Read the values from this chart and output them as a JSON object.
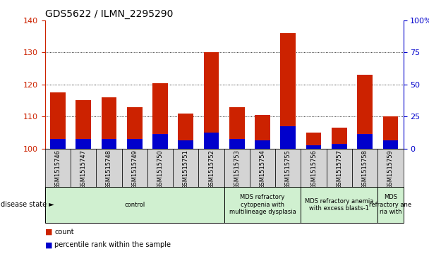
{
  "title": "GDS5622 / ILMN_2295290",
  "samples": [
    "GSM1515746",
    "GSM1515747",
    "GSM1515748",
    "GSM1515749",
    "GSM1515750",
    "GSM1515751",
    "GSM1515752",
    "GSM1515753",
    "GSM1515754",
    "GSM1515755",
    "GSM1515756",
    "GSM1515757",
    "GSM1515758",
    "GSM1515759"
  ],
  "counts": [
    117.5,
    115.0,
    116.0,
    113.0,
    120.5,
    111.0,
    130.0,
    113.0,
    110.5,
    136.0,
    105.0,
    106.5,
    123.0,
    110.0
  ],
  "percentile_heights": [
    3.0,
    3.0,
    3.0,
    3.0,
    4.5,
    2.5,
    5.0,
    3.0,
    2.5,
    7.0,
    1.0,
    1.5,
    4.5,
    2.5
  ],
  "bar_base": 100,
  "ylim_left": [
    100,
    140
  ],
  "ylim_right": [
    0,
    100
  ],
  "yticks_left": [
    100,
    110,
    120,
    130,
    140
  ],
  "yticks_right": [
    0,
    25,
    50,
    75,
    100
  ],
  "ytick_right_labels": [
    "0",
    "25",
    "50",
    "75",
    "100%"
  ],
  "bar_color": "#cc2200",
  "percentile_color": "#0000cc",
  "grid_color": "#000000",
  "bg_color": "#ffffff",
  "disease_groups": [
    {
      "label": "control",
      "start": 0,
      "end": 6,
      "color": "#d0f0d0"
    },
    {
      "label": "MDS refractory\ncytopenia with\nmultilineage dysplasia",
      "start": 7,
      "end": 9,
      "color": "#d0f0d0"
    },
    {
      "label": "MDS refractory anemia\nwith excess blasts-1",
      "start": 10,
      "end": 12,
      "color": "#d0f0d0"
    },
    {
      "label": "MDS\nrefractory ane\nria with",
      "start": 13,
      "end": 13,
      "color": "#d0f0d0"
    }
  ],
  "disease_state_label": "disease state",
  "legend_items": [
    {
      "color": "#cc2200",
      "label": "count"
    },
    {
      "color": "#0000cc",
      "label": "percentile rank within the sample"
    }
  ],
  "tick_label_color_left": "#cc2200",
  "tick_label_color_right": "#0000cc",
  "bar_width": 0.6,
  "title_fontsize": 10,
  "sample_name_fontsize": 6.0,
  "group_label_fontsize": 6.0,
  "legend_fontsize": 7.0
}
